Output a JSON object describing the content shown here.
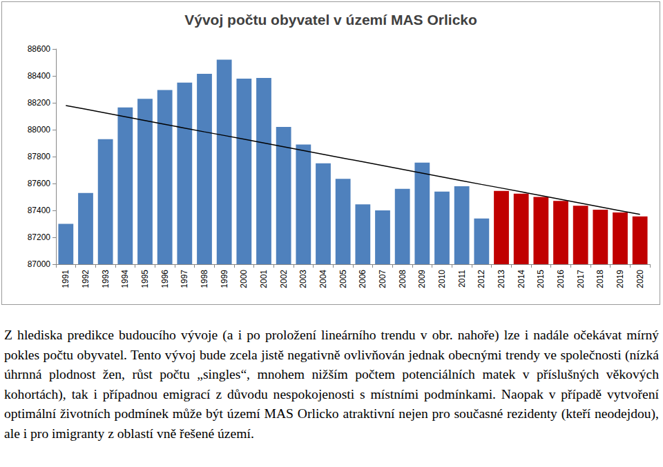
{
  "chart_data": {
    "type": "bar",
    "title": "Vývoj počtu obyvatel v území MAS Orlicko",
    "categories": [
      "1991",
      "1992",
      "1993",
      "1994",
      "1995",
      "1996",
      "1997",
      "1998",
      "1999",
      "2000",
      "2001",
      "2002",
      "2003",
      "2004",
      "2005",
      "2006",
      "2007",
      "2008",
      "2009",
      "2010",
      "2011",
      "2012",
      "2013",
      "2014",
      "2015",
      "2016",
      "2017",
      "2018",
      "2019",
      "2020"
    ],
    "series": [
      {
        "type": "bar",
        "colors": [
          "#4f81bd",
          "#4f81bd",
          "#4f81bd",
          "#4f81bd",
          "#4f81bd",
          "#4f81bd",
          "#4f81bd",
          "#4f81bd",
          "#4f81bd",
          "#4f81bd",
          "#4f81bd",
          "#4f81bd",
          "#4f81bd",
          "#4f81bd",
          "#4f81bd",
          "#4f81bd",
          "#4f81bd",
          "#4f81bd",
          "#4f81bd",
          "#4f81bd",
          "#4f81bd",
          "#4f81bd",
          "#c00000",
          "#c00000",
          "#c00000",
          "#c00000",
          "#c00000",
          "#c00000",
          "#c00000",
          "#c00000"
        ],
        "values": [
          87300,
          87530,
          87930,
          88165,
          88230,
          88295,
          88350,
          88415,
          88520,
          88380,
          88385,
          88020,
          87890,
          87750,
          87635,
          87445,
          87400,
          87560,
          87755,
          87540,
          87580,
          87340,
          87545,
          87525,
          87500,
          87470,
          87435,
          87405,
          87385,
          87355
        ]
      },
      {
        "type": "line",
        "color": "#000000",
        "line_style": "solid",
        "values": [
          88180,
          88152,
          88124,
          88096,
          88068,
          88040,
          88012,
          87984,
          87957,
          87929,
          87901,
          87873,
          87845,
          87817,
          87789,
          87761,
          87733,
          87705,
          87677,
          87649,
          87621,
          87593,
          87566,
          87538,
          87510,
          87482,
          87454,
          87426,
          87398,
          87370
        ]
      }
    ],
    "ylim": [
      87000,
      88600
    ],
    "yticks": [
      87000,
      87200,
      87400,
      87600,
      87800,
      88000,
      88200,
      88400,
      88600
    ],
    "grid": false
  },
  "text": "Z hlediska predikce budoucího vývoje (a i po proložení lineárního trendu v obr. nahoře) lze i nadále očekávat mírný pokles počtu obyvatel. Tento vývoj bude zcela jistě negativně ovlivňován jednak obecnými trendy ve společnosti (nízká úhrnná plodnost žen, růst počtu „singles“, mnohem nižším počtem potenciálních matek v příslušných věkových kohortách), tak i případnou emigrací z důvodu nespokojenosti s místními podmínkami. Naopak v případě vytvoření optimální životních podmínek může být území MAS Orlicko atraktivní nejen pro současné rezidenty (kteří neodejdou), ale i pro imigranty z oblastí vně řešené území."
}
